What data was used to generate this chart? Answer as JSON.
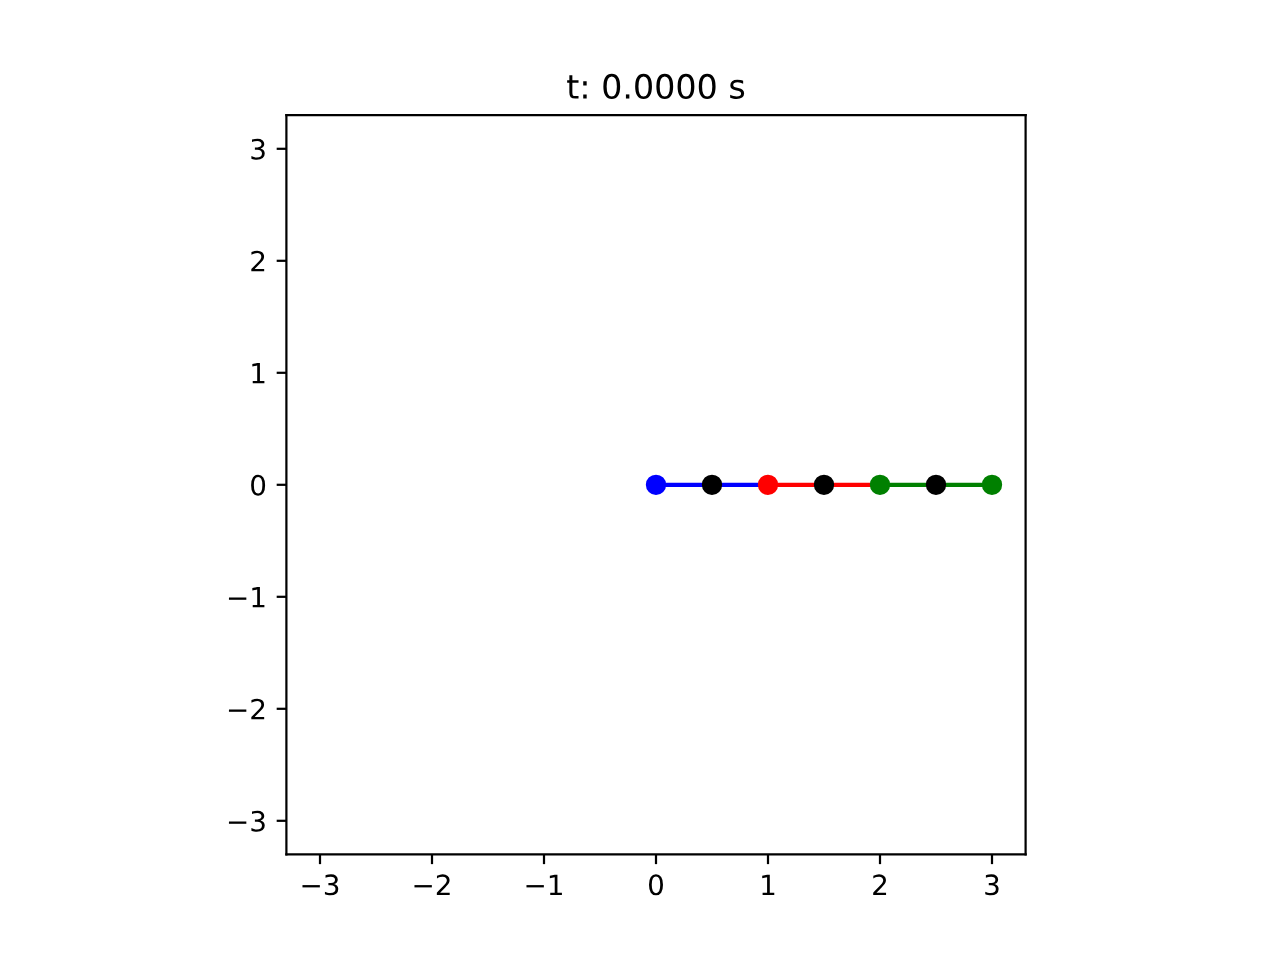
{
  "chart_data": {
    "type": "line",
    "title": "t: 0.0000 s",
    "series": [
      {
        "color": "#0000ff",
        "x": [
          0,
          1
        ],
        "values": [
          0,
          0
        ],
        "marker": "none"
      },
      {
        "color": "#ff0000",
        "x": [
          1,
          2
        ],
        "values": [
          0,
          0
        ],
        "marker": "none"
      },
      {
        "color": "#008000",
        "x": [
          2,
          3
        ],
        "values": [
          0,
          0
        ],
        "marker": "none"
      },
      {
        "type": "scatter",
        "colors": [
          "#0000ff",
          "#000000",
          "#ff0000",
          "#000000",
          "#008000",
          "#000000",
          "#008000"
        ],
        "x": [
          0,
          0.5,
          1,
          1.5,
          2,
          2.5,
          3
        ],
        "values": [
          0,
          0,
          0,
          0,
          0,
          0,
          0
        ],
        "marker": "circle"
      }
    ],
    "xlim": [
      -3.3,
      3.3
    ],
    "ylim": [
      -3.3,
      3.3
    ],
    "xticks": [
      {
        "value": -3,
        "label": "−3"
      },
      {
        "value": -2,
        "label": "−2"
      },
      {
        "value": -1,
        "label": "−1"
      },
      0,
      1,
      2,
      3
    ],
    "yticks": [
      {
        "value": -3,
        "label": "−3"
      },
      {
        "value": -2,
        "label": "−2"
      },
      {
        "value": -1,
        "label": "−1"
      },
      0,
      1,
      2,
      3
    ],
    "grid": false
  }
}
